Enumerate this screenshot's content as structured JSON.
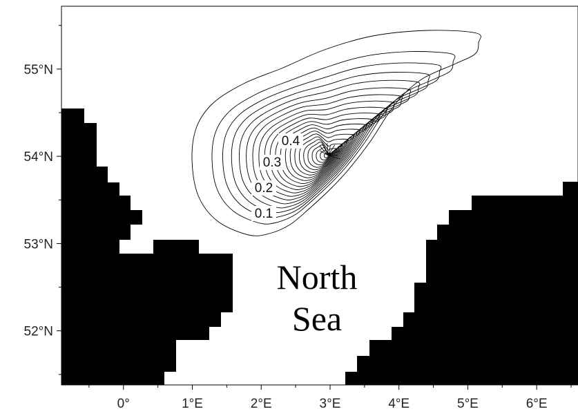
{
  "chart_data": {
    "type": "contour",
    "title": "",
    "xlabel": "",
    "ylabel": "",
    "xlim": [
      -0.9,
      6.6
    ],
    "ylim": [
      51.38,
      55.72
    ],
    "x_ticks": [
      {
        "value": 0,
        "label": "0°"
      },
      {
        "value": 1,
        "label": "1°E"
      },
      {
        "value": 2,
        "label": "2°E"
      },
      {
        "value": 3,
        "label": "3°E"
      },
      {
        "value": 4,
        "label": "4°E"
      },
      {
        "value": 5,
        "label": "5°E"
      },
      {
        "value": 6,
        "label": "6°E"
      }
    ],
    "y_ticks": [
      {
        "value": 52,
        "label": "52°N"
      },
      {
        "value": 53,
        "label": "53°N"
      },
      {
        "value": 54,
        "label": "54°N"
      },
      {
        "value": 55,
        "label": "55°N"
      }
    ],
    "contour_levels": [
      0.1,
      0.2,
      0.3,
      0.4
    ],
    "contour_labels": [
      "0.1",
      "0.2",
      "0.3",
      "0.4"
    ],
    "peak": {
      "lon": 3.0,
      "lat": 54.0
    },
    "grid": false,
    "land_color": "#000000",
    "sea_color": "#ffffff",
    "region_label": {
      "line1": "North",
      "line2": "Sea"
    }
  }
}
